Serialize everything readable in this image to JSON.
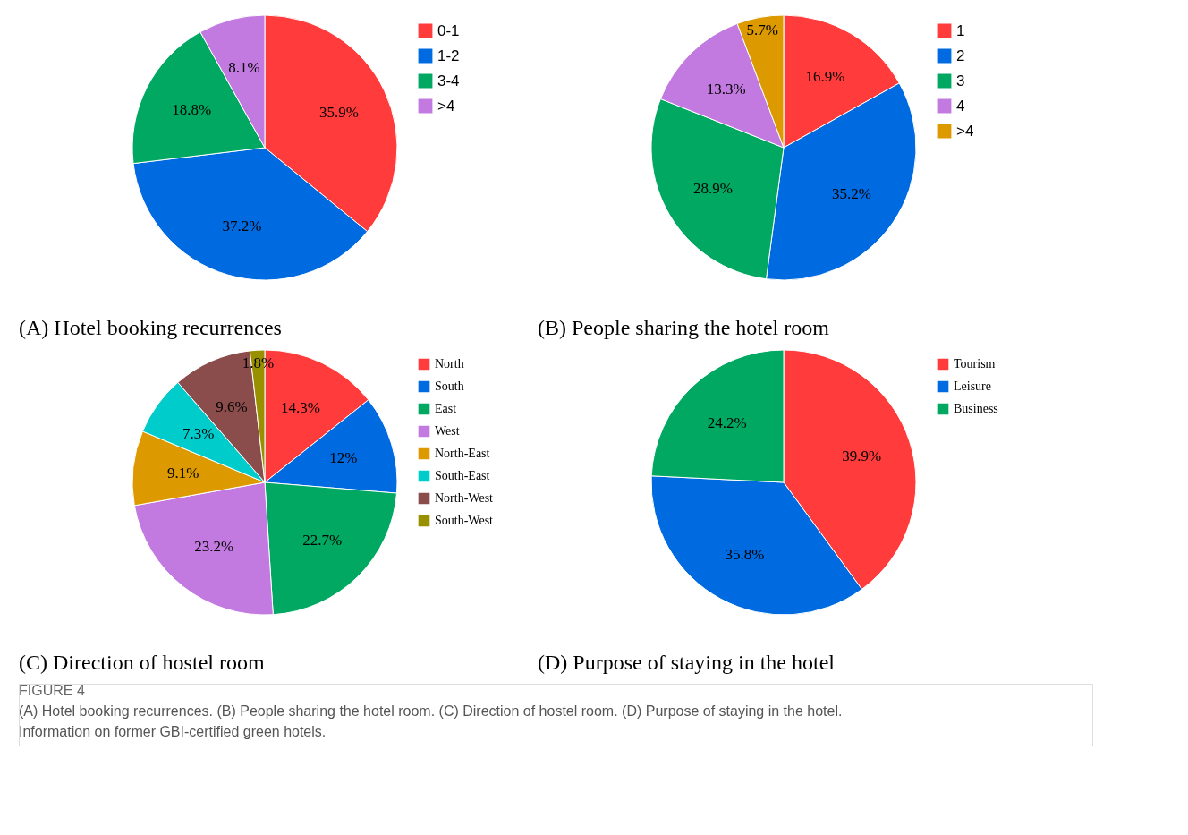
{
  "chart_data": [
    {
      "type": "pie",
      "title": "(A) Hotel booking recurrences",
      "categories": [
        "0-1",
        "1-2",
        "3-4",
        ">4"
      ],
      "values": [
        35.9,
        37.2,
        18.8,
        8.1
      ],
      "value_labels": [
        "35.9%",
        "37.2%",
        "18.8%",
        "8.1%"
      ],
      "colors": [
        "#ff3b3b",
        "#006ae0",
        "#00a862",
        "#c27ae0"
      ],
      "legend": "top right"
    },
    {
      "type": "pie",
      "title": "(B) People sharing the hotel room",
      "categories": [
        "1",
        "2",
        "3",
        "4",
        ">4"
      ],
      "values": [
        16.9,
        35.2,
        28.9,
        13.3,
        5.7
      ],
      "value_labels": [
        "16.9%",
        "35.2%",
        "28.9%",
        "13.3%",
        "5.7%"
      ],
      "colors": [
        "#ff3b3b",
        "#006ae0",
        "#00a862",
        "#c27ae0",
        "#dc9a00"
      ],
      "legend": "top right"
    },
    {
      "type": "pie",
      "title": "(C) Direction of hostel room",
      "categories": [
        "North",
        "South",
        "East",
        "West",
        "North-East",
        "South-East",
        "North-West",
        "South-West"
      ],
      "values": [
        14.3,
        12,
        22.7,
        23.2,
        9.1,
        7.3,
        9.6,
        1.8
      ],
      "value_labels": [
        "14.3%",
        "12%",
        "22.7%",
        "23.2%",
        "9.1%",
        "7.3%",
        "9.6%",
        "1.8%"
      ],
      "colors": [
        "#ff3b3b",
        "#006ae0",
        "#00a862",
        "#c27ae0",
        "#dc9a00",
        "#00cccc",
        "#8b4c4c",
        "#999000"
      ],
      "legend": "top right"
    },
    {
      "type": "pie",
      "title": "(D) Purpose of staying in the hotel",
      "categories": [
        "Tourism",
        "Leisure",
        "Business"
      ],
      "values": [
        39.9,
        35.8,
        24.2
      ],
      "value_labels": [
        "39.9%",
        "35.8%",
        "24.2%"
      ],
      "colors": [
        "#ff3b3b",
        "#006ae0",
        "#00a862"
      ],
      "legend": "top right",
      "annotations": [
        "FIGURE 4",
        "(A) Hotel booking recurrences. (B) People sharing the hotel room. (C) Direction of hostel room. (D) Purpose of staying in the hotel. Information on former GBI-certified green hotels."
      ]
    }
  ]
}
